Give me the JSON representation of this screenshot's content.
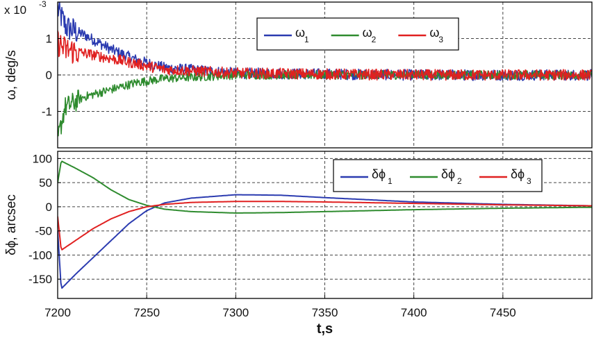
{
  "chart_data": [
    {
      "type": "line",
      "ylabel": "ω, deg/s",
      "scale_label": "x 10",
      "scale_exponent": "-3",
      "xlim": [
        7200,
        7500
      ],
      "ylim": [
        -2,
        2
      ],
      "yticks": [
        "1",
        "0",
        "-1"
      ],
      "ytick_values": [
        1,
        0,
        -1
      ],
      "grid": true,
      "legend_position": "top-right",
      "series": [
        {
          "name": "ω",
          "subscript": "1",
          "color": "#2b3bb0",
          "x": [
            7200,
            7205,
            7215,
            7230,
            7245,
            7260,
            7300,
            7400,
            7500
          ],
          "values": [
            1.8,
            1.3,
            1.1,
            0.7,
            0.4,
            0.2,
            0.05,
            0.0,
            0.0
          ],
          "noise": 0.15
        },
        {
          "name": "ω",
          "subscript": "2",
          "color": "#2e8b2e",
          "x": [
            7200,
            7204,
            7215,
            7230,
            7245,
            7260,
            7300,
            7400,
            7500
          ],
          "values": [
            -1.8,
            -0.9,
            -0.6,
            -0.4,
            -0.2,
            -0.1,
            0.0,
            0.0,
            0.0
          ],
          "noise": 0.12
        },
        {
          "name": "ω",
          "subscript": "3",
          "color": "#e02020",
          "x": [
            7200,
            7204,
            7215,
            7230,
            7245,
            7260,
            7300,
            7400,
            7500
          ],
          "values": [
            0.9,
            0.7,
            0.6,
            0.45,
            0.3,
            0.15,
            0.05,
            0.0,
            0.0
          ],
          "noise": 0.15
        }
      ]
    },
    {
      "type": "line",
      "ylabel": "δϕ, arcsec",
      "xlabel": "t,s",
      "xlim": [
        7200,
        7500
      ],
      "ylim": [
        -190,
        115
      ],
      "xticks": [
        "7200",
        "7250",
        "7300",
        "7350",
        "7400",
        "7450"
      ],
      "xtick_values": [
        7200,
        7250,
        7300,
        7350,
        7400,
        7450
      ],
      "yticks": [
        "100",
        "50",
        "0",
        "-50",
        "-100",
        "-150"
      ],
      "ytick_values": [
        100,
        50,
        0,
        -50,
        -100,
        -150
      ],
      "grid": true,
      "legend_position": "top-right",
      "series": [
        {
          "name": "δϕ",
          "subscript": "1",
          "color": "#2b3bb0",
          "x": [
            7200,
            7202,
            7210,
            7220,
            7230,
            7240,
            7250,
            7260,
            7275,
            7300,
            7325,
            7350,
            7400,
            7450,
            7500
          ],
          "values": [
            -50,
            -170,
            -140,
            -105,
            -70,
            -35,
            -8,
            8,
            18,
            25,
            24,
            19,
            10,
            5,
            2
          ]
        },
        {
          "name": "δϕ",
          "subscript": "2",
          "color": "#2e8b2e",
          "x": [
            7200,
            7202,
            7210,
            7220,
            7230,
            7240,
            7250,
            7260,
            7275,
            7300,
            7325,
            7350,
            7400,
            7450,
            7500
          ],
          "values": [
            50,
            95,
            80,
            60,
            35,
            15,
            3,
            -5,
            -10,
            -13,
            -12,
            -10,
            -6,
            -3,
            -1
          ]
        },
        {
          "name": "δϕ",
          "subscript": "3",
          "color": "#e02020",
          "x": [
            7200,
            7202,
            7210,
            7220,
            7230,
            7240,
            7250,
            7260,
            7275,
            7300,
            7325,
            7350,
            7400,
            7450,
            7500
          ],
          "values": [
            -20,
            -90,
            -70,
            -45,
            -25,
            -10,
            0,
            5,
            9,
            11,
            11,
            10,
            7,
            4,
            2
          ]
        }
      ]
    }
  ]
}
